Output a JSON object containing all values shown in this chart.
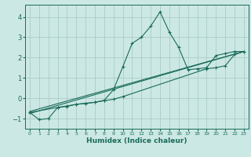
{
  "title": "",
  "xlabel": "Humidex (Indice chaleur)",
  "ylabel": "",
  "bg_color": "#cce8e4",
  "grid_color": "#aaccC8",
  "line_color": "#1a6b5a",
  "xlim": [
    -0.5,
    23.5
  ],
  "ylim": [
    -1.5,
    4.6
  ],
  "xticks": [
    0,
    1,
    2,
    3,
    4,
    5,
    6,
    7,
    8,
    9,
    10,
    11,
    12,
    13,
    14,
    15,
    16,
    17,
    18,
    19,
    20,
    21,
    22,
    23
  ],
  "yticks": [
    -1,
    0,
    1,
    2,
    3,
    4
  ],
  "series1_x": [
    0,
    1,
    2,
    3,
    4,
    5,
    6,
    7,
    8,
    9,
    10,
    11,
    12,
    13,
    14,
    15,
    16,
    17,
    18,
    19,
    20,
    21,
    22,
    23
  ],
  "series1_y": [
    -0.7,
    -1.05,
    -1.0,
    -0.45,
    -0.4,
    -0.3,
    -0.25,
    -0.2,
    -0.1,
    0.42,
    1.55,
    2.7,
    3.0,
    3.55,
    4.25,
    3.25,
    2.5,
    1.4,
    1.45,
    1.5,
    2.1,
    2.2,
    2.3,
    2.3
  ],
  "series2_x": [
    0,
    3,
    4,
    5,
    6,
    7,
    8,
    9,
    10,
    19,
    20,
    21,
    22,
    23
  ],
  "series2_y": [
    -0.7,
    -0.45,
    -0.38,
    -0.3,
    -0.25,
    -0.2,
    -0.12,
    -0.05,
    0.08,
    1.45,
    1.5,
    1.6,
    2.15,
    2.3
  ],
  "series3_x": [
    0,
    23
  ],
  "series3_y": [
    -0.75,
    2.3
  ],
  "series4_x": [
    0,
    23
  ],
  "series4_y": [
    -0.65,
    2.3
  ]
}
